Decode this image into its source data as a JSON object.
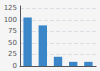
{
  "chart_data": {
    "type": "bar",
    "categories": [
      null,
      null,
      null,
      null,
      null
    ],
    "values": [
      105,
      88,
      20,
      9,
      9
    ],
    "color": "#3a86c8",
    "ylim": [
      0,
      130
    ],
    "yticks": [
      0,
      25,
      50,
      75,
      100,
      125
    ],
    "grid": true,
    "tick_labels": "y"
  }
}
